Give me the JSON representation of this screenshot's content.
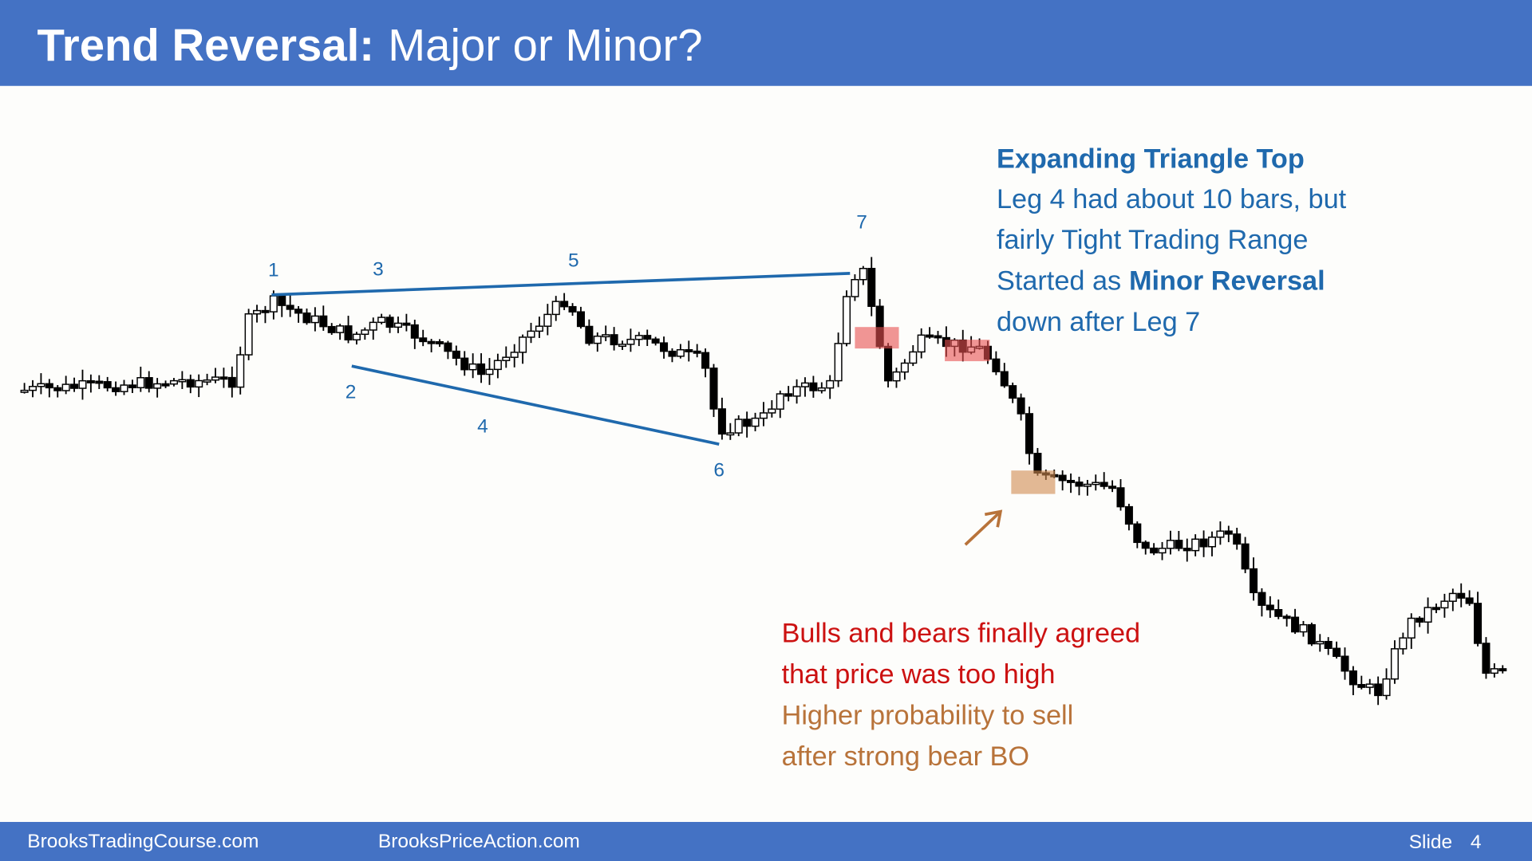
{
  "header": {
    "title_bold": "Trend Reversal:",
    "title_rest": "Major or Minor?"
  },
  "labels": [
    "1",
    "2",
    "3",
    "4",
    "5",
    "6",
    "7"
  ],
  "notes": {
    "heading": "Expanding Triangle Top",
    "line1": "Leg 4 had about 10 bars, but",
    "line2": "fairly Tight Trading Range",
    "line3_start": "Started as",
    "line3_bold": "Minor Reversal",
    "line4": "down after Leg 7"
  },
  "agreement": {
    "line1": "Bulls and bears finally agreed",
    "line2": "that price was too high"
  },
  "probability": {
    "line1": "Higher probability to sell",
    "line2": "after strong bear BO"
  },
  "footer": {
    "left": "BrooksTradingCourse.com",
    "center": "BrooksPriceAction.com",
    "slide_label": "Slide",
    "slide_number": "4"
  }
}
